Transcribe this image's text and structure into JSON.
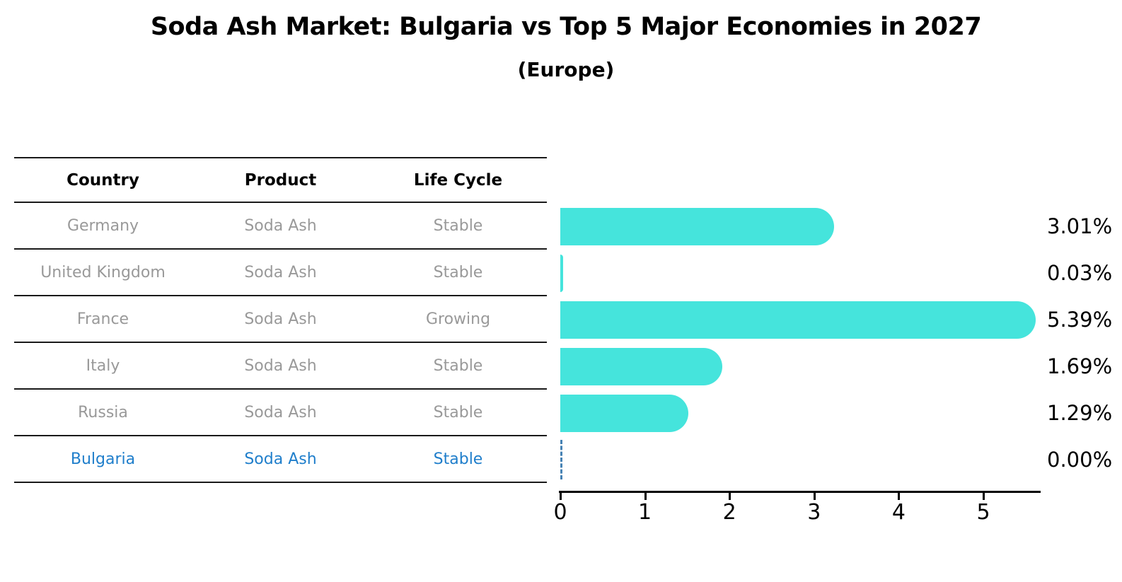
{
  "title": "Soda Ash Market: Bulgaria vs Top 5 Major Economies in 2027",
  "subtitle": "(Europe)",
  "table": {
    "headers": [
      "Country",
      "Product",
      "Life Cycle"
    ],
    "rows": [
      {
        "country": "Germany",
        "product": "Soda Ash",
        "life_cycle": "Stable",
        "highlight": false
      },
      {
        "country": "United Kingdom",
        "product": "Soda Ash",
        "life_cycle": "Stable",
        "highlight": false
      },
      {
        "country": "France",
        "product": "Soda Ash",
        "life_cycle": "Growing",
        "highlight": false
      },
      {
        "country": "Italy",
        "product": "Soda Ash",
        "life_cycle": "Stable",
        "highlight": false
      },
      {
        "country": "Russia",
        "product": "Soda Ash",
        "life_cycle": "Stable",
        "highlight": false
      },
      {
        "country": "Bulgaria",
        "product": "Soda Ash",
        "life_cycle": "Stable",
        "highlight": true
      }
    ]
  },
  "chart_data": {
    "type": "bar",
    "orientation": "horizontal",
    "title": "Soda Ash Market: Bulgaria vs Top 5 Major Economies in 2027 (Europe)",
    "categories": [
      "Germany",
      "United Kingdom",
      "France",
      "Italy",
      "Russia",
      "Bulgaria"
    ],
    "values": [
      3.01,
      0.03,
      5.39,
      1.69,
      1.29,
      0.0
    ],
    "value_labels": [
      "3.01%",
      "0.03%",
      "5.39%",
      "1.69%",
      "1.29%",
      "0.00%"
    ],
    "x_ticks": [
      0,
      1,
      2,
      3,
      4,
      5
    ],
    "xlim": [
      0,
      5.67
    ],
    "grid": false,
    "legend": "none",
    "bar_color": "#45E4DC",
    "zero_marker_color": "#4682B4",
    "zero_marker_style": "dashed"
  },
  "colors": {
    "row_text": "#999999",
    "highlight_text": "#1F7ECB",
    "table_line": "#1a1a1a",
    "axis": "#000000",
    "title_text": "#000000"
  }
}
